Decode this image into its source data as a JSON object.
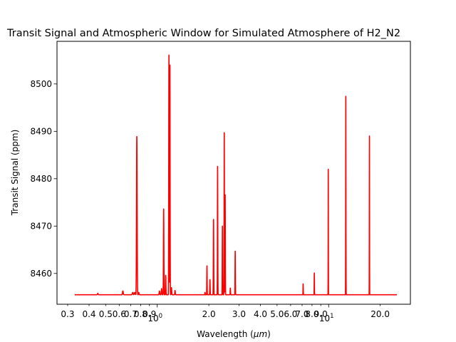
{
  "chart_data": {
    "type": "line",
    "title": "Transit Signal and Atmospheric Window for Simulated Atmosphere of H2_N2",
    "xlabel": "Wavelength (",
    "xlabel_unit": "μm",
    "xlabel_close": ")",
    "ylabel": "Transit Signal (ppm)",
    "x_scale": "log",
    "xlim": [
      0.26,
      30.0
    ],
    "ylim": [
      8453.5,
      8509.0
    ],
    "x_ticks": [
      {
        "value": 0.3,
        "label": "0.3"
      },
      {
        "value": 0.4,
        "label": "0.4"
      },
      {
        "value": 0.5,
        "label": "0.5"
      },
      {
        "value": 0.6,
        "label": "0.6"
      },
      {
        "value": 0.7,
        "label": "0.7"
      },
      {
        "value": 0.8,
        "label": "0.8"
      },
      {
        "value": 0.9,
        "label": "0.9"
      },
      {
        "value": 2.0,
        "label": "2.0"
      },
      {
        "value": 3.0,
        "label": "3.0"
      },
      {
        "value": 4.0,
        "label": "4.0"
      },
      {
        "value": 5.0,
        "label": "5.0"
      },
      {
        "value": 6.0,
        "label": "6.0"
      },
      {
        "value": 7.0,
        "label": "7.0"
      },
      {
        "value": 8.0,
        "label": "8.0"
      },
      {
        "value": 9.0,
        "label": "9.0"
      },
      {
        "value": 20.0,
        "label": "20.0"
      }
    ],
    "x_major_ticks": [
      {
        "value": 1.0,
        "label_base": "10",
        "label_exp": "0"
      },
      {
        "value": 10.0,
        "label_base": "10",
        "label_exp": "1"
      }
    ],
    "y_ticks": [
      8460,
      8470,
      8480,
      8490,
      8500
    ],
    "grid": false,
    "series": [
      {
        "color": "#ff0000",
        "baseline": 8455.5,
        "x_range": [
          0.33,
          25.0
        ],
        "peaks": [
          {
            "x": 0.45,
            "y": 8455.8,
            "w": 0.002
          },
          {
            "x": 0.63,
            "y": 8456.3,
            "w": 0.003
          },
          {
            "x": 0.72,
            "y": 8456.0,
            "w": 0.004
          },
          {
            "x": 0.74,
            "y": 8456.0,
            "w": 0.004
          },
          {
            "x": 0.76,
            "y": 8488.9,
            "w": 0.003
          },
          {
            "x": 0.78,
            "y": 8456.0,
            "w": 0.003
          },
          {
            "x": 1.03,
            "y": 8456.3,
            "w": 0.004
          },
          {
            "x": 1.06,
            "y": 8456.8,
            "w": 0.004
          },
          {
            "x": 1.09,
            "y": 8473.6,
            "w": 0.003
          },
          {
            "x": 1.12,
            "y": 8459.6,
            "w": 0.003
          },
          {
            "x": 1.17,
            "y": 8506.1,
            "w": 0.003
          },
          {
            "x": 1.185,
            "y": 8504.0,
            "w": 0.003
          },
          {
            "x": 1.21,
            "y": 8457.0,
            "w": 0.004
          },
          {
            "x": 1.27,
            "y": 8456.4,
            "w": 0.004
          },
          {
            "x": 1.9,
            "y": 8456.0,
            "w": 0.004
          },
          {
            "x": 1.95,
            "y": 8461.6,
            "w": 0.004
          },
          {
            "x": 2.03,
            "y": 8458.7,
            "w": 0.005
          },
          {
            "x": 2.13,
            "y": 8471.4,
            "w": 0.005
          },
          {
            "x": 2.25,
            "y": 8482.6,
            "w": 0.005
          },
          {
            "x": 2.4,
            "y": 8470.0,
            "w": 0.005
          },
          {
            "x": 2.46,
            "y": 8489.7,
            "w": 0.005
          },
          {
            "x": 2.49,
            "y": 8476.6,
            "w": 0.005
          },
          {
            "x": 2.67,
            "y": 8456.9,
            "w": 0.006
          },
          {
            "x": 2.85,
            "y": 8464.7,
            "w": 0.006
          },
          {
            "x": 7.1,
            "y": 8457.8,
            "w": 0.012
          },
          {
            "x": 8.25,
            "y": 8460.1,
            "w": 0.012
          },
          {
            "x": 9.95,
            "y": 8482.0,
            "w": 0.012
          },
          {
            "x": 12.6,
            "y": 8497.4,
            "w": 0.02
          },
          {
            "x": 17.3,
            "y": 8489.0,
            "w": 0.022
          }
        ]
      }
    ]
  }
}
